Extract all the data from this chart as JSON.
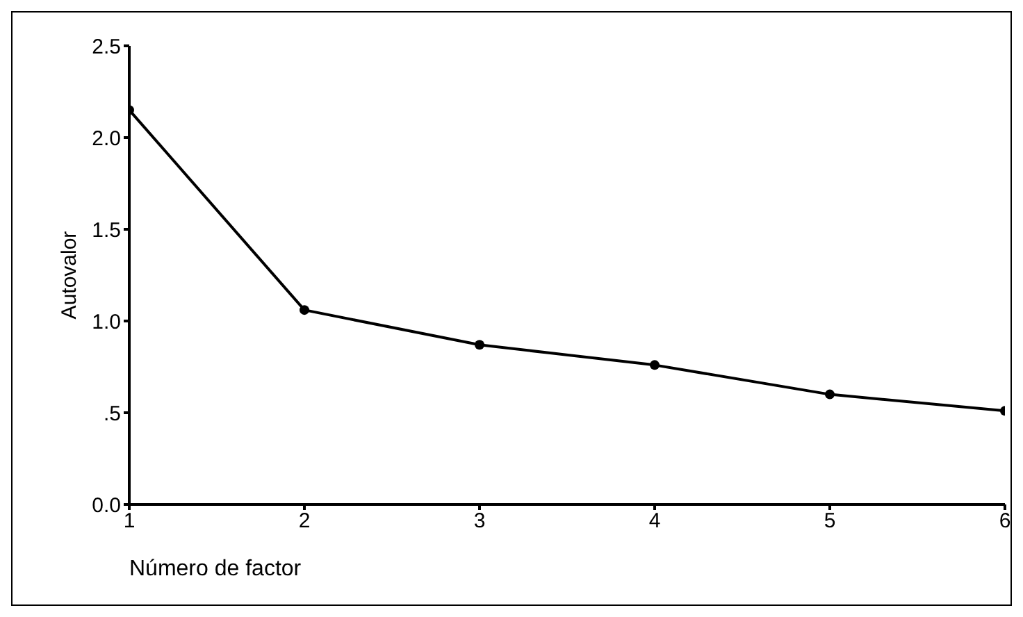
{
  "chart_data": {
    "type": "line",
    "xlabel": "Número de factor",
    "ylabel": "Autovalor",
    "x": [
      1,
      2,
      3,
      4,
      5,
      6
    ],
    "series": [
      {
        "color": "#000000",
        "values": [
          2.15,
          1.06,
          0.87,
          0.76,
          0.6,
          0.51
        ]
      }
    ],
    "xlim": [
      1,
      6
    ],
    "xticks": [
      1,
      2,
      3,
      4,
      5,
      6
    ],
    "ylim": [
      0,
      2.5
    ],
    "yticks": [
      {
        "value": 0,
        "label": "0.0"
      },
      {
        "value": 0.5,
        "label": ".5"
      },
      {
        "value": 1,
        "label": "1.0"
      },
      {
        "value": 1.5,
        "label": "1.5"
      },
      {
        "value": 2,
        "label": "2.0"
      },
      {
        "value": 2.5,
        "label": "2.5"
      }
    ],
    "grid": false,
    "legend": false,
    "marker": "circle",
    "line_style": "solid"
  }
}
